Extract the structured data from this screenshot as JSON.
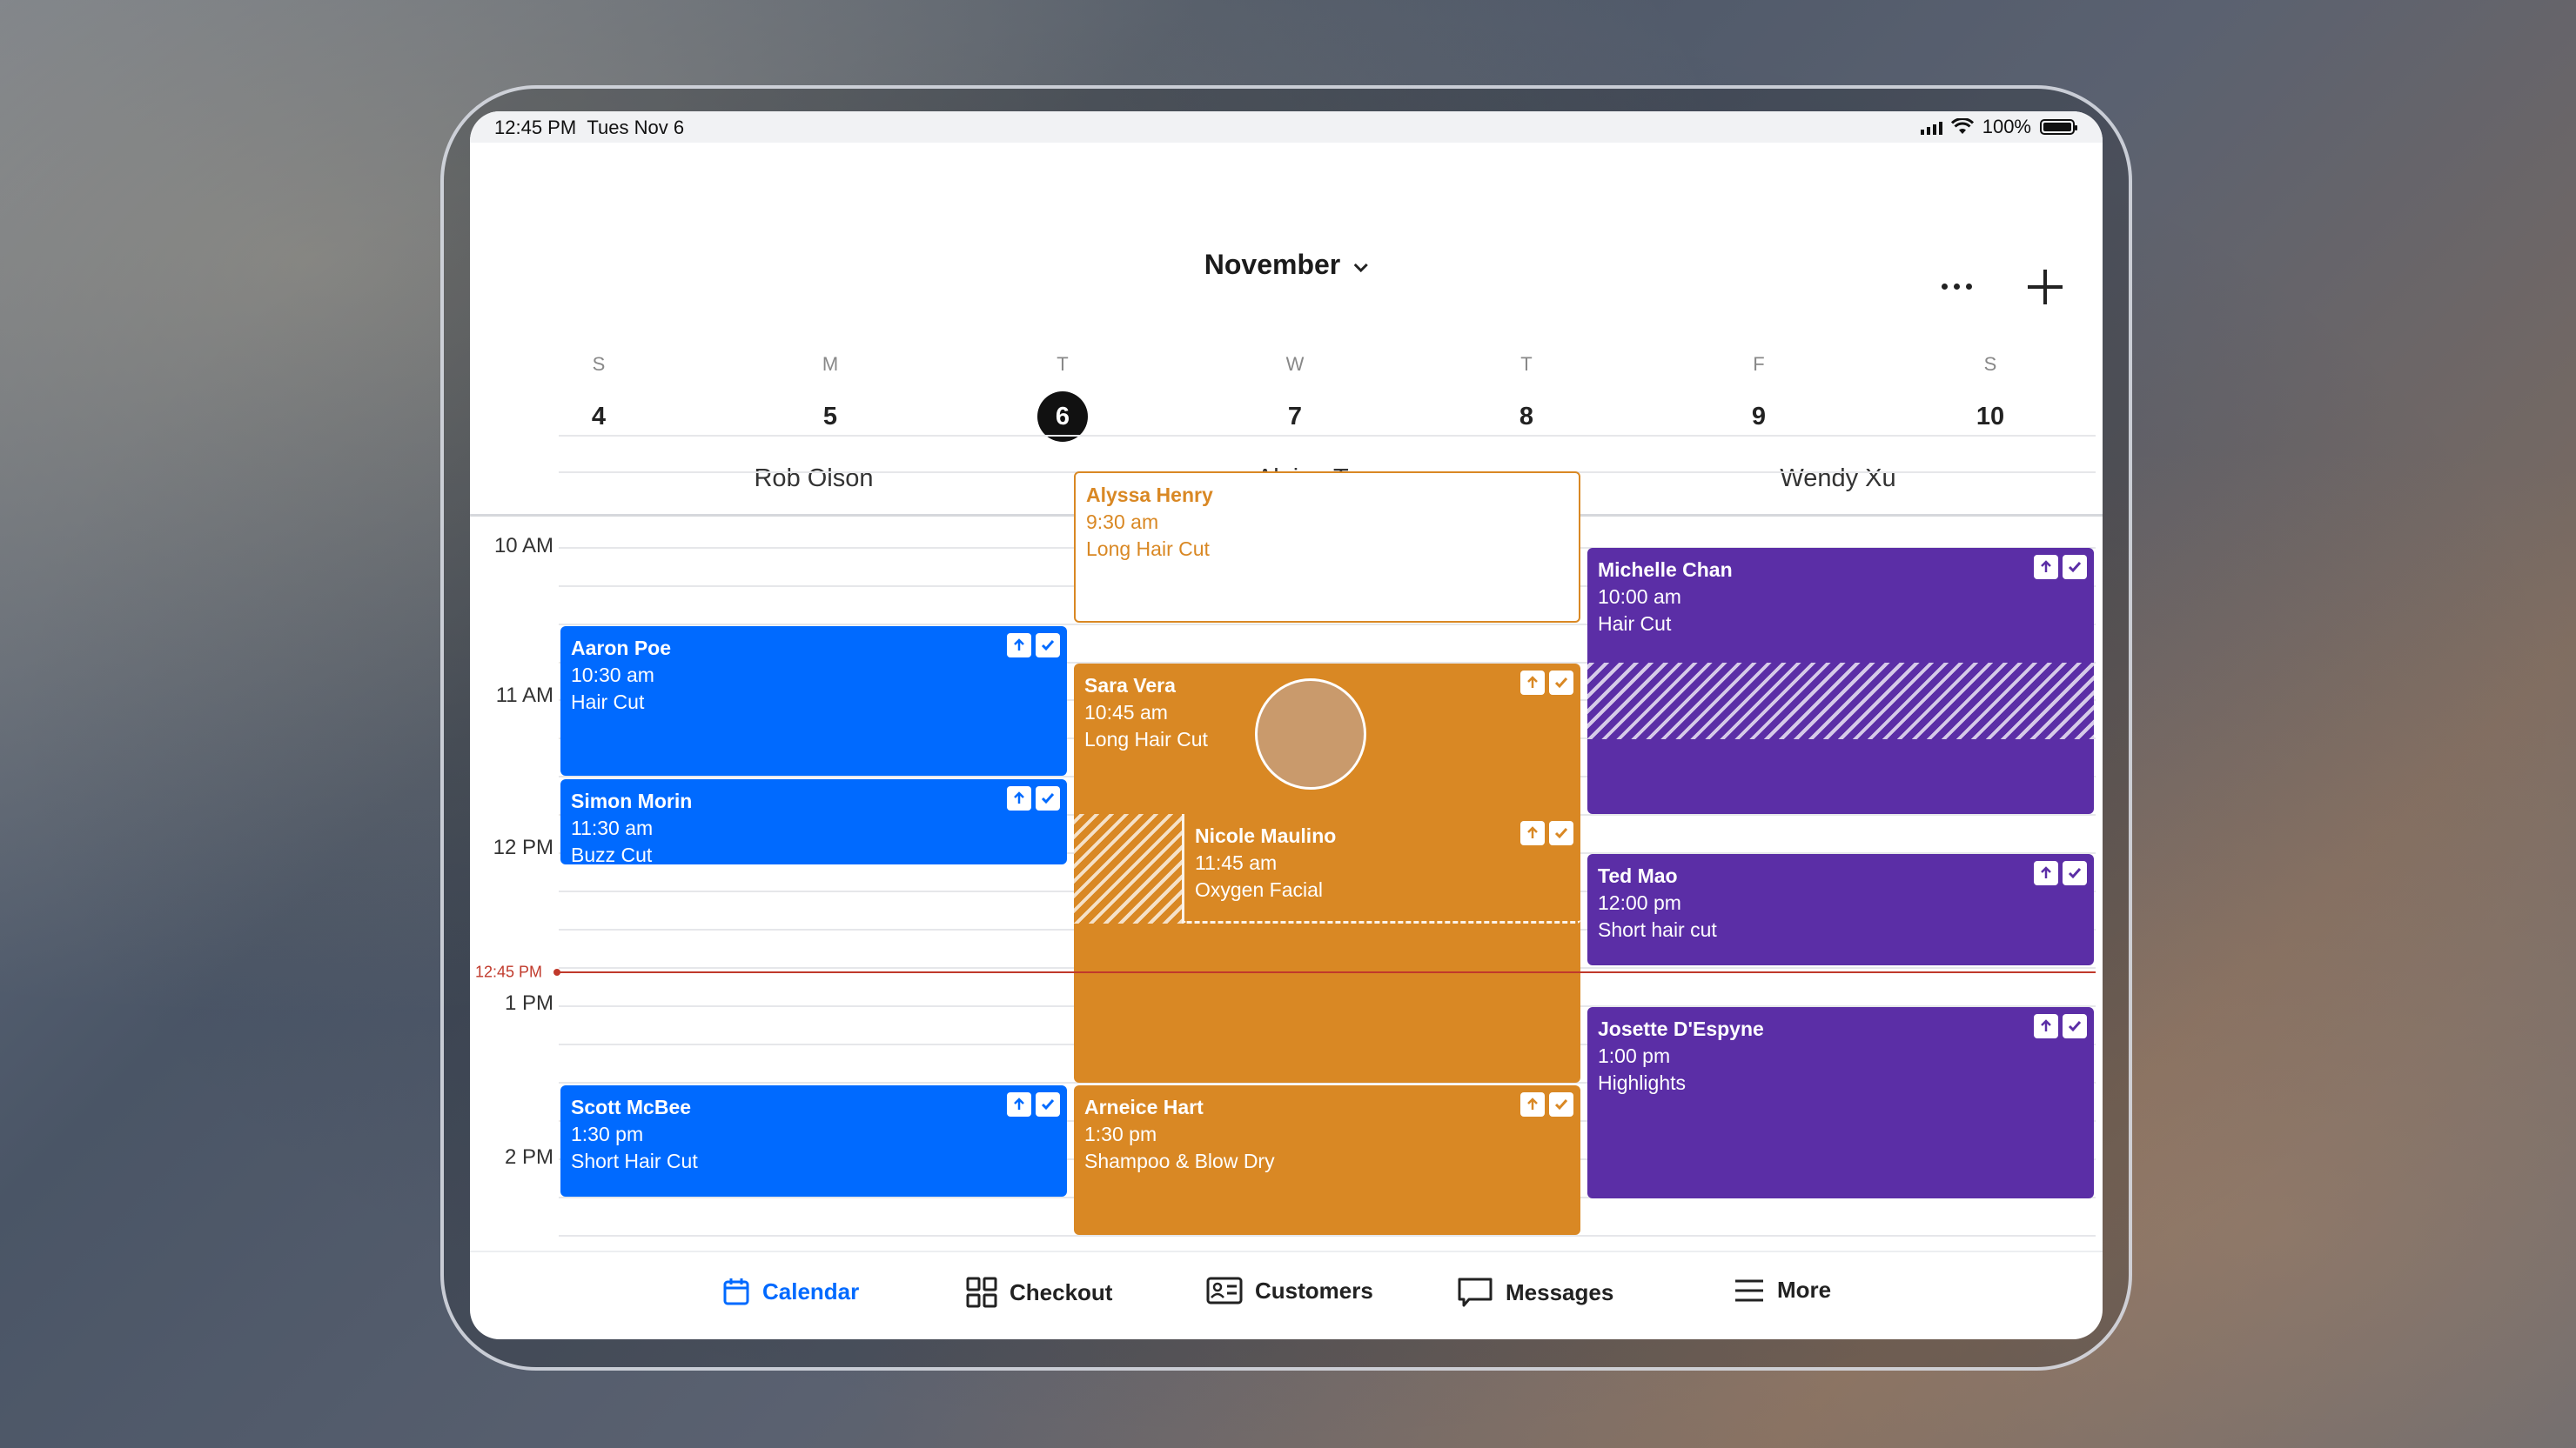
{
  "status_bar": {
    "time": "12:45 PM",
    "date": "Tues Nov 6",
    "battery": "100%"
  },
  "header": {
    "month": "November",
    "days": [
      {
        "letter": "S",
        "num": "4"
      },
      {
        "letter": "M",
        "num": "5"
      },
      {
        "letter": "T",
        "num": "6",
        "selected": true
      },
      {
        "letter": "W",
        "num": "7"
      },
      {
        "letter": "T",
        "num": "8"
      },
      {
        "letter": "F",
        "num": "9"
      },
      {
        "letter": "S",
        "num": "10"
      }
    ],
    "staff": [
      "Rob Olson",
      "Alaina Tyrer",
      "Wendy Xu"
    ]
  },
  "hours": [
    "10 AM",
    "11 AM",
    "12 PM",
    "1 PM",
    "2 PM"
  ],
  "now_label": "12:45 PM",
  "appointments": {
    "alyssa": {
      "name": "Alyssa Henry",
      "time": "9:30 am",
      "service": "Long Hair Cut"
    },
    "aaron": {
      "name": "Aaron Poe",
      "time": "10:30 am",
      "service": "Hair Cut"
    },
    "simon": {
      "name": "Simon Morin",
      "time": "11:30 am",
      "service": "Buzz Cut"
    },
    "sara": {
      "name": "Sara Vera",
      "time": "10:45 am",
      "service": "Long Hair Cut"
    },
    "nicole": {
      "name": "Nicole Maulino",
      "time": "11:45 am",
      "service": "Oxygen Facial"
    },
    "michelle": {
      "name": "Michelle Chan",
      "time": "10:00 am",
      "service": "Hair Cut"
    },
    "ted": {
      "name": "Ted Mao",
      "time": "12:00 pm",
      "service": "Short hair cut"
    },
    "josette": {
      "name": "Josette D'Espyne",
      "time": "1:00 pm",
      "service": "Highlights"
    },
    "scott": {
      "name": "Scott McBee",
      "time": "1:30 pm",
      "service": "Short Hair Cut"
    },
    "arneice": {
      "name": "Arneice Hart",
      "time": "1:30 pm",
      "service": "Shampoo & Blow Dry"
    }
  },
  "tabs": [
    "Calendar",
    "Checkout",
    "Customers",
    "Messages",
    "More"
  ],
  "colors": {
    "blue": "#006aff",
    "orange": "#d98824",
    "purple": "#5b2ea6",
    "now": "#c0392b"
  }
}
